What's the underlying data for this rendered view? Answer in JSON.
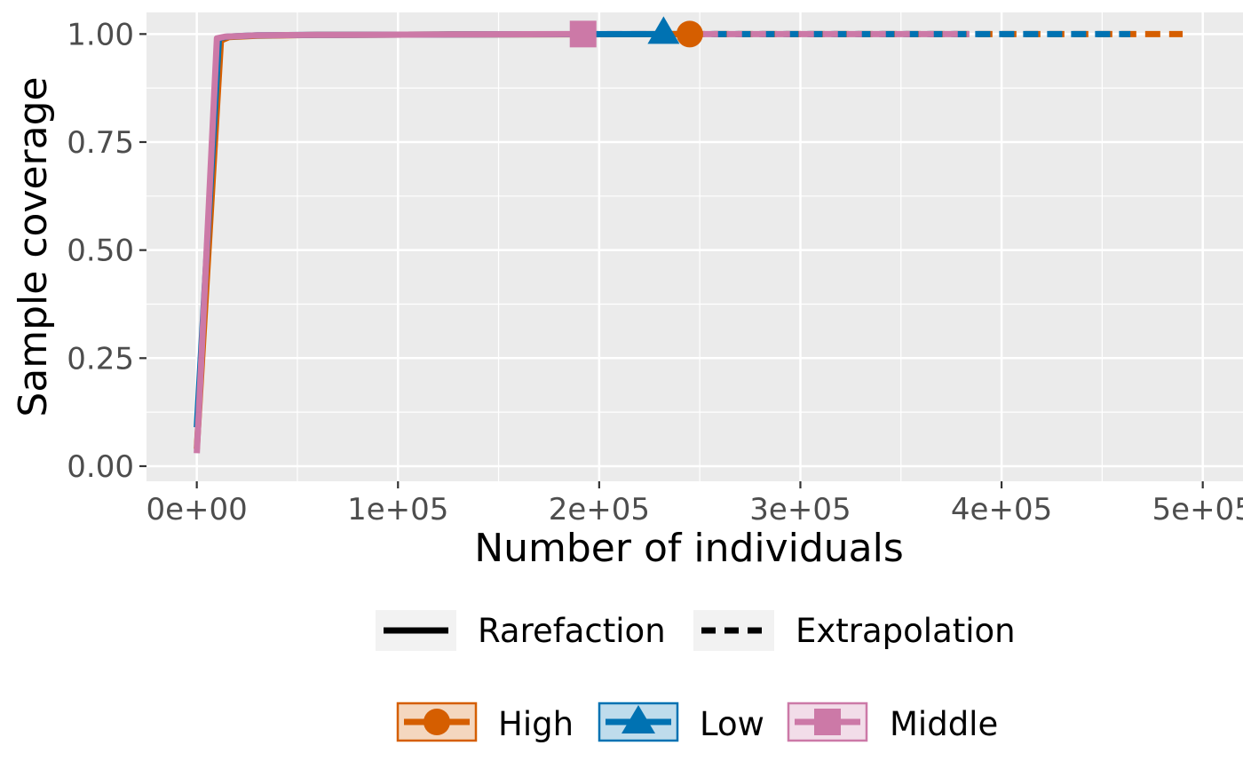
{
  "chart_data": {
    "type": "line",
    "xlabel": "Number of individuals",
    "ylabel": "Sample coverage",
    "xlim": [
      -25000,
      520000
    ],
    "ylim": [
      -0.035,
      1.05
    ],
    "x_ticks": [
      0,
      100000,
      200000,
      300000,
      400000,
      500000
    ],
    "x_tick_labels": [
      "0e+00",
      "1e+05",
      "2e+05",
      "3e+05",
      "4e+05",
      "5e+05"
    ],
    "y_ticks": [
      0,
      0.25,
      0.5,
      0.75,
      1.0
    ],
    "y_tick_labels": [
      "0.00",
      "0.25",
      "0.50",
      "0.75",
      "1.00"
    ],
    "grid": true,
    "linetype_legend": [
      {
        "label": "Rarefaction",
        "dash": "solid"
      },
      {
        "label": "Extrapolation",
        "dash": "dashed"
      }
    ],
    "series": [
      {
        "name": "High",
        "color": "#D55E00",
        "marker": "circle",
        "observed": {
          "x": 245000,
          "y": 1.0
        },
        "rarefaction": {
          "x": [
            0,
            12000,
            16000,
            30000,
            60000,
            120000,
            245000
          ],
          "y": [
            0.04,
            0.985,
            0.993,
            0.996,
            0.998,
            0.999,
            1.0
          ]
        },
        "extrapolation": {
          "x": [
            245000,
            300000,
            400000,
            490000
          ],
          "y": [
            1.0,
            1.0,
            1.0,
            1.0
          ]
        }
      },
      {
        "name": "Low",
        "color": "#0072B2",
        "marker": "triangle",
        "observed": {
          "x": 232000,
          "y": 1.0
        },
        "rarefaction": {
          "x": [
            0,
            11000,
            15000,
            30000,
            60000,
            120000,
            232000
          ],
          "y": [
            0.09,
            0.99,
            0.994,
            0.997,
            0.998,
            0.999,
            1.0
          ]
        },
        "extrapolation": {
          "x": [
            232000,
            300000,
            400000,
            464000
          ],
          "y": [
            1.0,
            1.0,
            1.0,
            1.0
          ]
        }
      },
      {
        "name": "Middle",
        "color": "#CC79A7",
        "marker": "square",
        "observed": {
          "x": 192000,
          "y": 1.0
        },
        "rarefaction": {
          "x": [
            0,
            10000,
            14000,
            30000,
            60000,
            120000,
            192000
          ],
          "y": [
            0.03,
            0.99,
            0.994,
            0.997,
            0.998,
            0.999,
            1.0
          ]
        },
        "extrapolation": {
          "x": [
            192000,
            300000,
            384000
          ],
          "y": [
            1.0,
            1.0,
            1.0
          ]
        }
      }
    ]
  }
}
